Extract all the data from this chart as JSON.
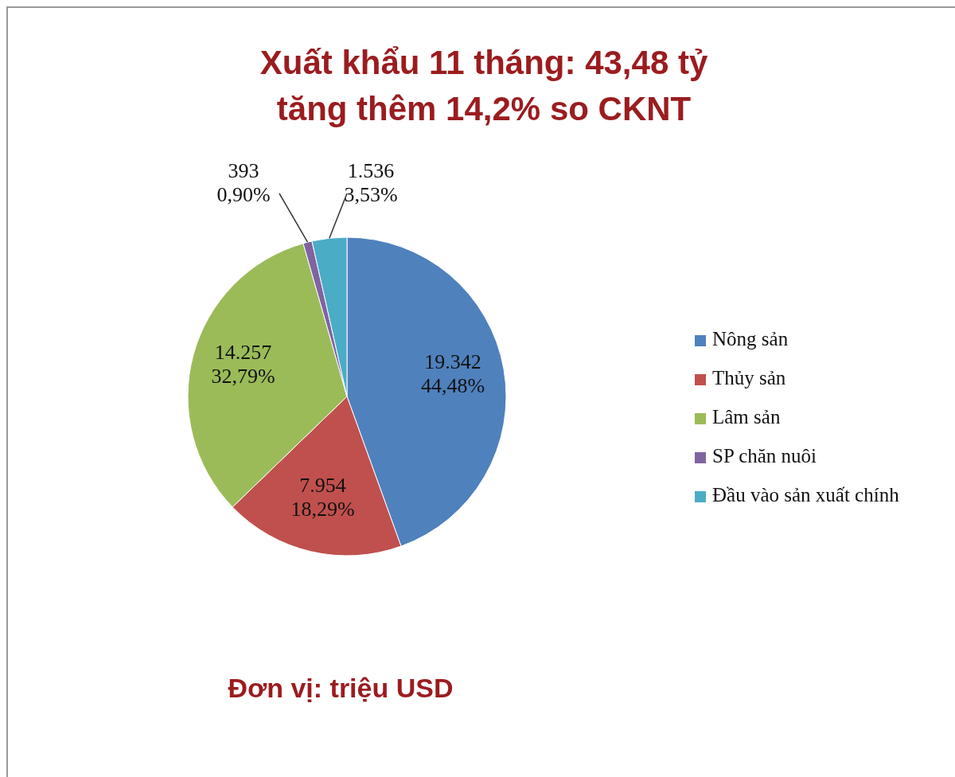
{
  "chart_data": {
    "type": "pie",
    "title": "Xuất khẩu 11 tháng: 43,48 tỷ\ntăng thêm 14,2% so CKNT",
    "categories": [
      "Nông sản",
      "Thủy sản",
      "Lâm sản",
      "SP chăn nuôi",
      "Đầu vào sản xuất chính"
    ],
    "values": [
      19342,
      7954,
      14257,
      393,
      1536
    ],
    "colors": [
      "#4f81bd",
      "#c0504d",
      "#9bbb59",
      "#8064a2",
      "#4bacc6"
    ],
    "value_labels": [
      "19.342\n44,48%",
      "7.954\n18,29%",
      "14.257\n32,79%",
      "393\n0,90%",
      "1.536\n3,53%"
    ],
    "legend": "right",
    "annotations": [
      "Đơn vị: triệu USD"
    ]
  }
}
